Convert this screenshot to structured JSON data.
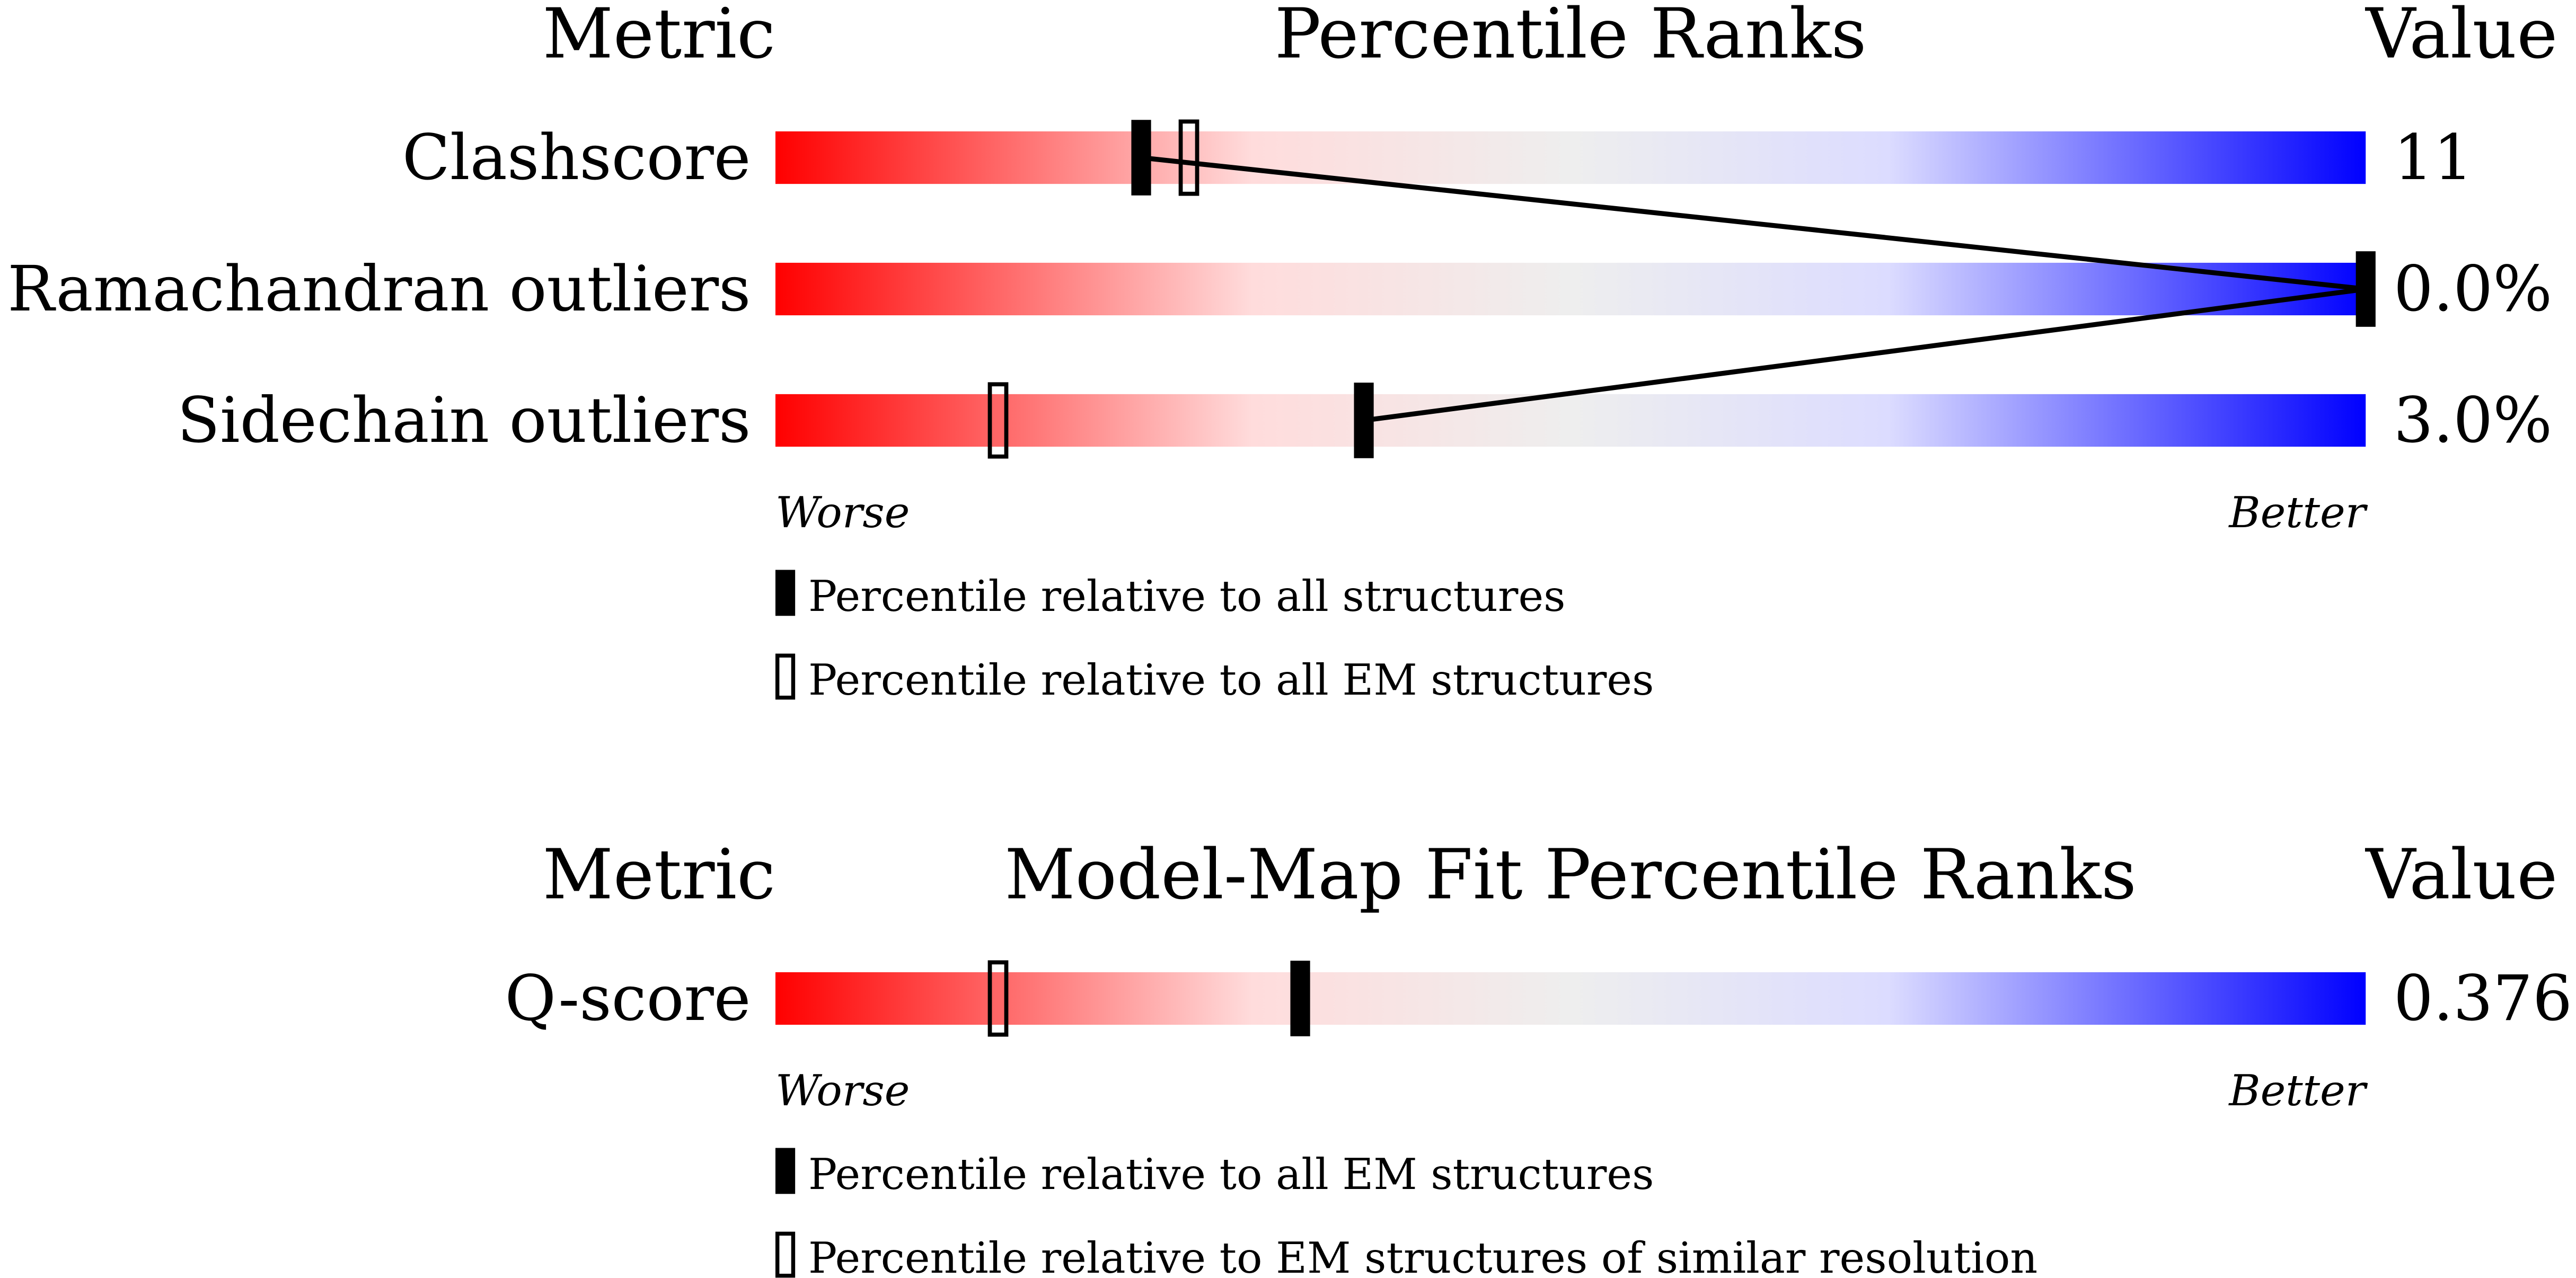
{
  "chart_data": [
    {
      "type": "percentile-slider",
      "metric_header": "Metric",
      "title": "Percentile Ranks",
      "value_header": "Value",
      "xlim": [
        0,
        100
      ],
      "worse": "Worse",
      "better": "Better",
      "metrics": [
        {
          "name": "Clashscore",
          "value": "11",
          "filled": 23,
          "open": 26
        },
        {
          "name": "Ramachandran outliers",
          "value": "0.0%",
          "filled": 100
        },
        {
          "name": "Sidechain outliers",
          "value": "3.0%",
          "filled": 37,
          "open": 14
        }
      ],
      "legend": {
        "filled": "Percentile relative to all structures",
        "open": "Percentile relative to all EM structures"
      }
    },
    {
      "type": "percentile-slider",
      "metric_header": "Metric",
      "title": "Model-Map Fit Percentile Ranks",
      "value_header": "Value",
      "xlim": [
        0,
        100
      ],
      "worse": "Worse",
      "better": "Better",
      "metrics": [
        {
          "name": "Q-score",
          "value": "0.376",
          "filled": 33,
          "open": 14
        }
      ],
      "legend": {
        "filled": "Percentile relative to all EM structures",
        "open": "Percentile relative to EM structures of similar resolution"
      }
    }
  ]
}
